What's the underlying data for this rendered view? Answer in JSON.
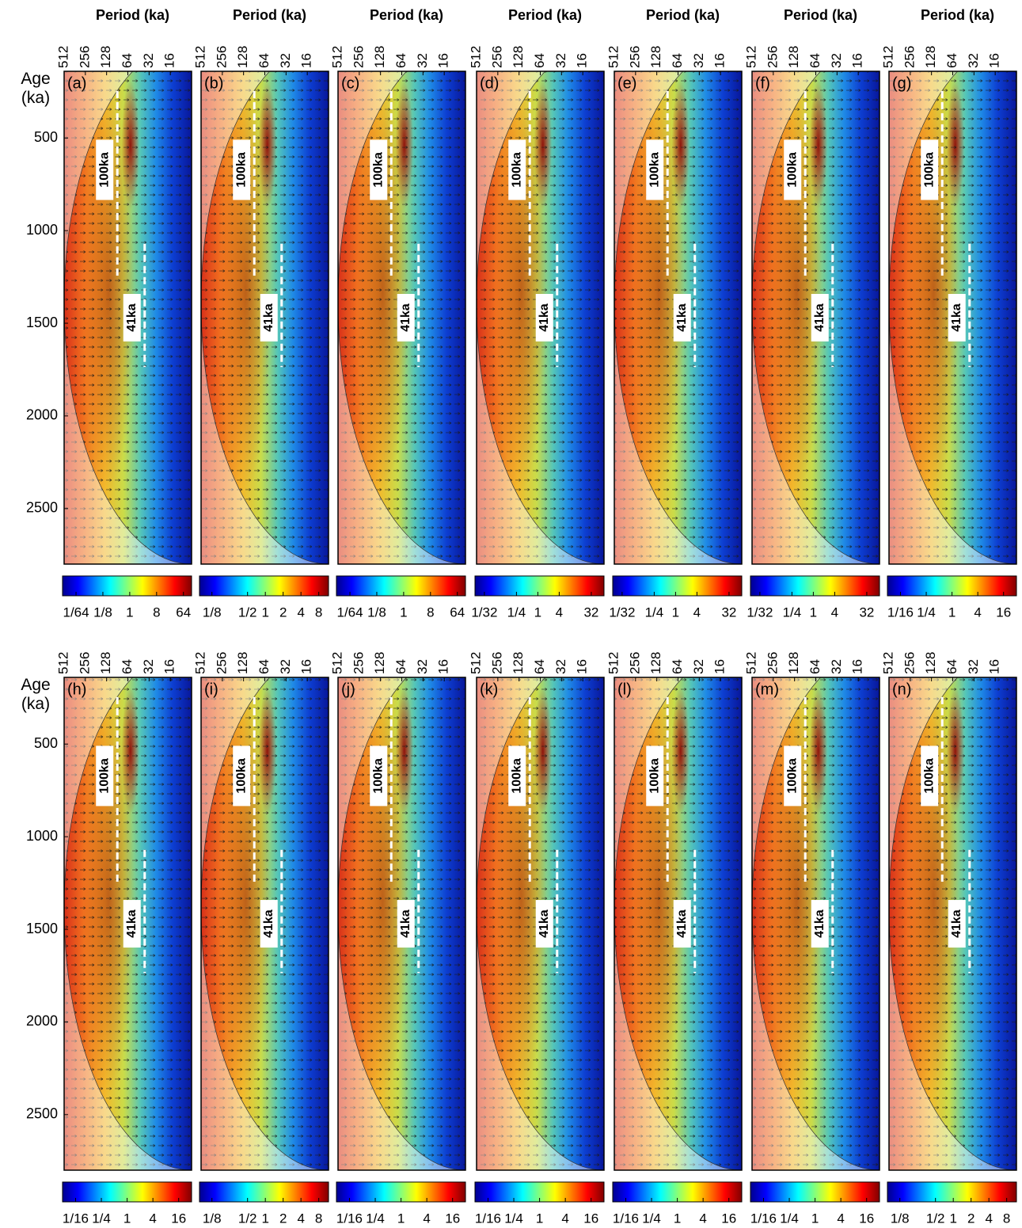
{
  "chart_data": [
    {
      "type": "wavelet",
      "label": "(a)",
      "xlabel": "Period (ka)",
      "ylabel": "Age (ka)",
      "xscale": "log2",
      "xlim": [
        512,
        8
      ],
      "xticks": [
        512,
        256,
        128,
        64,
        32,
        16
      ],
      "ylim": [
        140,
        2800
      ],
      "yreversed": true,
      "yticks": [
        500,
        1000,
        1500,
        2000,
        2500
      ],
      "annotations": [
        "100ka",
        "41ka"
      ],
      "colorbar": {
        "cmap": "jet",
        "scale": "log2",
        "clim": [
          0.0055,
          120
        ],
        "ticks": [
          {
            "value": 0.015625,
            "label": "1/64"
          },
          {
            "value": 0.125,
            "label": "1/8"
          },
          1,
          8,
          64
        ]
      }
    },
    {
      "type": "wavelet",
      "label": "(b)",
      "xlabel": "Period (ka)",
      "xscale": "log2",
      "xlim": [
        512,
        8
      ],
      "xticks": [
        512,
        256,
        128,
        64,
        32,
        16
      ],
      "ylim": [
        140,
        2800
      ],
      "yreversed": true,
      "annotations": [
        "100ka",
        "41ka"
      ],
      "colorbar": {
        "cmap": "jet",
        "scale": "log2",
        "clim": [
          0.077,
          11.7
        ],
        "ticks": [
          {
            "value": 0.125,
            "label": "1/8"
          },
          {
            "value": 0.5,
            "label": "1/2"
          },
          1,
          2,
          4,
          8
        ]
      }
    },
    {
      "type": "wavelet",
      "label": "(c)",
      "xlabel": "Period (ka)",
      "xscale": "log2",
      "xlim": [
        512,
        8
      ],
      "xticks": [
        512,
        256,
        128,
        64,
        32,
        16
      ],
      "ylim": [
        140,
        2800
      ],
      "yreversed": true,
      "annotations": [
        "100ka",
        "41ka"
      ],
      "colorbar": {
        "cmap": "jet",
        "scale": "log2",
        "clim": [
          0.0055,
          120
        ],
        "ticks": [
          {
            "value": 0.015625,
            "label": "1/64"
          },
          {
            "value": 0.125,
            "label": "1/8"
          },
          1,
          8,
          64
        ]
      }
    },
    {
      "type": "wavelet",
      "label": "(d)",
      "xlabel": "Period (ka)",
      "xscale": "log2",
      "xlim": [
        512,
        8
      ],
      "xticks": [
        512,
        256,
        128,
        64,
        32,
        16
      ],
      "ylim": [
        140,
        2800
      ],
      "yreversed": true,
      "annotations": [
        "100ka",
        "41ka"
      ],
      "colorbar": {
        "cmap": "jet",
        "scale": "log2",
        "clim": [
          0.017,
          73
        ],
        "ticks": [
          {
            "value": 0.03125,
            "label": "1/32"
          },
          {
            "value": 0.25,
            "label": "1/4"
          },
          1,
          4,
          32
        ]
      }
    },
    {
      "type": "wavelet",
      "label": "(e)",
      "xlabel": "Period (ka)",
      "xscale": "log2",
      "xlim": [
        512,
        8
      ],
      "xticks": [
        512,
        256,
        128,
        64,
        32,
        16
      ],
      "ylim": [
        140,
        2800
      ],
      "yreversed": true,
      "annotations": [
        "100ka",
        "41ka"
      ],
      "colorbar": {
        "cmap": "jet",
        "scale": "log2",
        "clim": [
          0.017,
          73
        ],
        "ticks": [
          {
            "value": 0.03125,
            "label": "1/32"
          },
          {
            "value": 0.25,
            "label": "1/4"
          },
          1,
          4,
          32
        ]
      }
    },
    {
      "type": "wavelet",
      "label": "(f)",
      "xlabel": "Period (ka)",
      "xscale": "log2",
      "xlim": [
        512,
        8
      ],
      "xticks": [
        512,
        256,
        128,
        64,
        32,
        16
      ],
      "ylim": [
        140,
        2800
      ],
      "yreversed": true,
      "annotations": [
        "100ka",
        "41ka"
      ],
      "colorbar": {
        "cmap": "jet",
        "scale": "log2",
        "clim": [
          0.017,
          73
        ],
        "ticks": [
          {
            "value": 0.03125,
            "label": "1/32"
          },
          {
            "value": 0.25,
            "label": "1/4"
          },
          1,
          4,
          32
        ]
      }
    },
    {
      "type": "wavelet",
      "label": "(g)",
      "xlabel": "Period (ka)",
      "xscale": "log2",
      "xlim": [
        512,
        8
      ],
      "xticks": [
        512,
        256,
        128,
        64,
        32,
        16
      ],
      "ylim": [
        140,
        2800
      ],
      "yreversed": true,
      "annotations": [
        "100ka",
        "41ka"
      ],
      "colorbar": {
        "cmap": "jet",
        "scale": "log2",
        "clim": [
          0.031,
          32
        ],
        "ticks": [
          {
            "value": 0.0625,
            "label": "1/16"
          },
          {
            "value": 0.25,
            "label": "1/4"
          },
          1,
          4,
          16
        ]
      }
    },
    {
      "type": "wavelet",
      "label": "(h)",
      "ylabel": "Age (ka)",
      "xscale": "log2",
      "xlim": [
        512,
        8
      ],
      "xticks": [
        512,
        256,
        128,
        64,
        32,
        16
      ],
      "ylim": [
        140,
        2800
      ],
      "yreversed": true,
      "yticks": [
        500,
        1000,
        1500,
        2000,
        2500
      ],
      "annotations": [
        "100ka",
        "41ka"
      ],
      "colorbar": {
        "cmap": "jet",
        "scale": "log2",
        "clim": [
          0.031,
          32
        ],
        "ticks": [
          {
            "value": 0.0625,
            "label": "1/16"
          },
          {
            "value": 0.25,
            "label": "1/4"
          },
          1,
          4,
          16
        ]
      }
    },
    {
      "type": "wavelet",
      "label": "(i)",
      "xscale": "log2",
      "xlim": [
        512,
        8
      ],
      "xticks": [
        512,
        256,
        128,
        64,
        32,
        16
      ],
      "ylim": [
        140,
        2800
      ],
      "yreversed": true,
      "annotations": [
        "100ka",
        "41ka"
      ],
      "colorbar": {
        "cmap": "jet",
        "scale": "log2",
        "clim": [
          0.077,
          11.7
        ],
        "ticks": [
          {
            "value": 0.125,
            "label": "1/8"
          },
          {
            "value": 0.5,
            "label": "1/2"
          },
          1,
          2,
          4,
          8
        ]
      }
    },
    {
      "type": "wavelet",
      "label": "(j)",
      "xscale": "log2",
      "xlim": [
        512,
        8
      ],
      "xticks": [
        512,
        256,
        128,
        64,
        32,
        16
      ],
      "ylim": [
        140,
        2800
      ],
      "yreversed": true,
      "annotations": [
        "100ka",
        "41ka"
      ],
      "colorbar": {
        "cmap": "jet",
        "scale": "log2",
        "clim": [
          0.031,
          32
        ],
        "ticks": [
          {
            "value": 0.0625,
            "label": "1/16"
          },
          {
            "value": 0.25,
            "label": "1/4"
          },
          1,
          4,
          16
        ]
      }
    },
    {
      "type": "wavelet",
      "label": "(k)",
      "xscale": "log2",
      "xlim": [
        512,
        8
      ],
      "xticks": [
        512,
        256,
        128,
        64,
        32,
        16
      ],
      "ylim": [
        140,
        2800
      ],
      "yreversed": true,
      "annotations": [
        "100ka",
        "41ka"
      ],
      "colorbar": {
        "cmap": "jet",
        "scale": "log2",
        "clim": [
          0.031,
          32
        ],
        "ticks": [
          {
            "value": 0.0625,
            "label": "1/16"
          },
          {
            "value": 0.25,
            "label": "1/4"
          },
          1,
          4,
          16
        ]
      }
    },
    {
      "type": "wavelet",
      "label": "(l)",
      "xscale": "log2",
      "xlim": [
        512,
        8
      ],
      "xticks": [
        512,
        256,
        128,
        64,
        32,
        16
      ],
      "ylim": [
        140,
        2800
      ],
      "yreversed": true,
      "annotations": [
        "100ka",
        "41ka"
      ],
      "colorbar": {
        "cmap": "jet",
        "scale": "log2",
        "clim": [
          0.031,
          32
        ],
        "ticks": [
          {
            "value": 0.0625,
            "label": "1/16"
          },
          {
            "value": 0.25,
            "label": "1/4"
          },
          1,
          4,
          16
        ]
      }
    },
    {
      "type": "wavelet",
      "label": "(m)",
      "xscale": "log2",
      "xlim": [
        512,
        8
      ],
      "xticks": [
        512,
        256,
        128,
        64,
        32,
        16
      ],
      "ylim": [
        140,
        2800
      ],
      "yreversed": true,
      "annotations": [
        "100ka",
        "41ka"
      ],
      "colorbar": {
        "cmap": "jet",
        "scale": "log2",
        "clim": [
          0.031,
          32
        ],
        "ticks": [
          {
            "value": 0.0625,
            "label": "1/16"
          },
          {
            "value": 0.25,
            "label": "1/4"
          },
          1,
          4,
          16
        ]
      }
    },
    {
      "type": "wavelet",
      "label": "(n)",
      "xscale": "log2",
      "xlim": [
        512,
        8
      ],
      "xticks": [
        512,
        256,
        128,
        64,
        32,
        16
      ],
      "ylim": [
        140,
        2800
      ],
      "yreversed": true,
      "annotations": [
        "100ka",
        "41ka"
      ],
      "colorbar": {
        "cmap": "jet",
        "scale": "log2",
        "clim": [
          0.077,
          11.7
        ],
        "ticks": [
          {
            "value": 0.125,
            "label": "1/8"
          },
          {
            "value": 0.5,
            "label": "1/2"
          },
          1,
          2,
          4,
          8
        ]
      }
    }
  ]
}
